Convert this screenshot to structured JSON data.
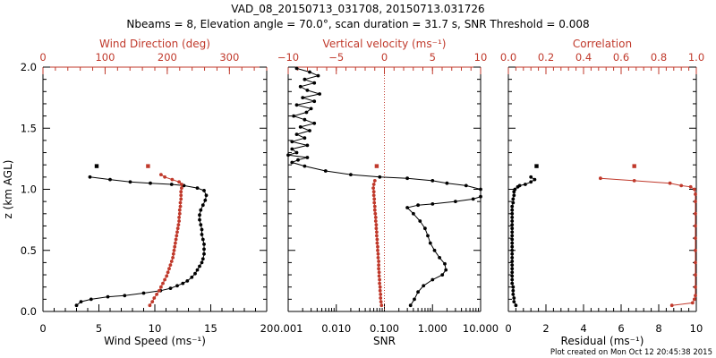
{
  "title_line1": "VAD_08_20150713_031708, 20150713.031726",
  "title_line2": "Nbeams = 8, Elevation angle = 70.0°, scan duration = 31.7 s, SNR Threshold = 0.008",
  "footer": "Plot created on Mon Oct 12 20:45:38 2015",
  "colors": {
    "black": "#000000",
    "red": "#c0392b"
  },
  "chart_data": [
    {
      "type": "line",
      "panel": "wind",
      "ylabel": "z (km AGL)",
      "ylim": [
        0,
        2.0
      ],
      "y_ticks": [
        "0.0",
        "0.5",
        "1.0",
        "1.5",
        "2.0"
      ],
      "bottom_axis": {
        "label": "Wind Speed (ms⁻¹)",
        "range": [
          0,
          20
        ],
        "ticks": [
          "0",
          "5",
          "10",
          "15",
          "20"
        ]
      },
      "top_axis": {
        "label": "Wind Direction (deg)",
        "range": [
          0,
          360
        ],
        "ticks": [
          "0",
          "100",
          "200",
          "300"
        ]
      },
      "series": [
        {
          "role": "wind_speed",
          "axis": "bottom",
          "color": "#000000",
          "points": [
            [
              3.0,
              0.05
            ],
            [
              3.4,
              0.08
            ],
            [
              4.3,
              0.1
            ],
            [
              5.8,
              0.12
            ],
            [
              7.3,
              0.13
            ],
            [
              9.0,
              0.15
            ],
            [
              10.5,
              0.17
            ],
            [
              11.4,
              0.19
            ],
            [
              12.0,
              0.21
            ],
            [
              12.5,
              0.23
            ],
            [
              12.9,
              0.25
            ],
            [
              13.3,
              0.28
            ],
            [
              13.6,
              0.31
            ],
            [
              13.8,
              0.34
            ],
            [
              14.0,
              0.37
            ],
            [
              14.2,
              0.4
            ],
            [
              14.3,
              0.43
            ],
            [
              14.4,
              0.47
            ],
            [
              14.4,
              0.51
            ],
            [
              14.4,
              0.55
            ],
            [
              14.3,
              0.59
            ],
            [
              14.2,
              0.63
            ],
            [
              14.2,
              0.67
            ],
            [
              14.1,
              0.71
            ],
            [
              14.0,
              0.75
            ],
            [
              14.0,
              0.79
            ],
            [
              14.1,
              0.83
            ],
            [
              14.3,
              0.87
            ],
            [
              14.5,
              0.91
            ],
            [
              14.6,
              0.95
            ],
            [
              14.4,
              0.99
            ],
            [
              13.8,
              1.01
            ],
            [
              12.6,
              1.03
            ],
            [
              11.5,
              1.04
            ],
            [
              9.6,
              1.05
            ],
            [
              7.8,
              1.06
            ],
            [
              6.0,
              1.08
            ],
            [
              4.2,
              1.1
            ]
          ],
          "isolated": [
            [
              4.8,
              1.19
            ]
          ]
        },
        {
          "role": "wind_direction",
          "axis": "top",
          "color": "#c0392b",
          "points": [
            [
              172,
              0.05
            ],
            [
              176,
              0.08
            ],
            [
              179,
              0.11
            ],
            [
              183,
              0.14
            ],
            [
              187,
              0.17
            ],
            [
              190,
              0.2
            ],
            [
              193,
              0.23
            ],
            [
              196,
              0.26
            ],
            [
              199,
              0.29
            ],
            [
              201,
              0.32
            ],
            [
              203,
              0.35
            ],
            [
              205,
              0.38
            ],
            [
              207,
              0.41
            ],
            [
              209,
              0.44
            ],
            [
              210,
              0.47
            ],
            [
              211,
              0.5
            ],
            [
              212,
              0.53
            ],
            [
              213,
              0.56
            ],
            [
              214,
              0.59
            ],
            [
              215,
              0.62
            ],
            [
              216,
              0.65
            ],
            [
              217,
              0.68
            ],
            [
              218,
              0.71
            ],
            [
              219,
              0.74
            ],
            [
              219,
              0.77
            ],
            [
              220,
              0.8
            ],
            [
              220,
              0.83
            ],
            [
              221,
              0.86
            ],
            [
              221,
              0.89
            ],
            [
              222,
              0.92
            ],
            [
              222,
              0.95
            ],
            [
              222,
              0.98
            ],
            [
              223,
              1.01
            ],
            [
              223,
              1.04
            ],
            [
              219,
              1.06
            ],
            [
              208,
              1.08
            ],
            [
              196,
              1.1
            ],
            [
              190,
              1.12
            ]
          ],
          "isolated": [
            [
              169,
              1.19
            ]
          ]
        }
      ]
    },
    {
      "type": "line",
      "panel": "snr",
      "ylim": [
        0,
        2.0
      ],
      "bottom_axis": {
        "label": "SNR",
        "scale": "log",
        "range": [
          0.001,
          10
        ],
        "ticks": [
          "0.001",
          "0.010",
          "0.100",
          "1.000",
          "10.000"
        ]
      },
      "top_axis": {
        "label": "Vertical velocity (ms⁻¹)",
        "range": [
          -10,
          10
        ],
        "ticks": [
          "−10",
          "−5",
          "0",
          "5",
          "10"
        ]
      },
      "series": [
        {
          "role": "snr",
          "axis": "bottom",
          "color": "#000000",
          "points": [
            [
              0.35,
              0.05
            ],
            [
              0.42,
              0.1
            ],
            [
              0.5,
              0.16
            ],
            [
              0.65,
              0.21
            ],
            [
              1.0,
              0.26
            ],
            [
              1.6,
              0.3
            ],
            [
              1.9,
              0.34
            ],
            [
              1.8,
              0.39
            ],
            [
              1.4,
              0.44
            ],
            [
              1.1,
              0.5
            ],
            [
              0.9,
              0.56
            ],
            [
              0.8,
              0.62
            ],
            [
              0.7,
              0.68
            ],
            [
              0.55,
              0.74
            ],
            [
              0.4,
              0.8
            ],
            [
              0.3,
              0.85
            ],
            [
              0.5,
              0.87
            ],
            [
              1.0,
              0.88
            ],
            [
              3.0,
              0.9
            ],
            [
              7.0,
              0.92
            ],
            [
              10,
              0.94
            ],
            [
              10,
              1.0
            ],
            [
              5.0,
              1.03
            ],
            [
              2.0,
              1.05
            ],
            [
              1.0,
              1.07
            ],
            [
              0.3,
              1.09
            ],
            [
              0.08,
              1.1
            ],
            [
              0.02,
              1.12
            ],
            [
              0.006,
              1.15
            ],
            [
              0.0022,
              1.19
            ],
            [
              0.0012,
              1.22
            ],
            [
              0.0016,
              1.24
            ],
            [
              0.0025,
              1.26
            ],
            [
              0.001,
              1.28
            ],
            [
              0.0015,
              1.3
            ],
            [
              0.0012,
              1.33
            ],
            [
              0.0025,
              1.36
            ],
            [
              0.0012,
              1.39
            ],
            [
              0.0022,
              1.42
            ],
            [
              0.0015,
              1.45
            ],
            [
              0.0028,
              1.48
            ],
            [
              0.0018,
              1.51
            ],
            [
              0.0035,
              1.54
            ],
            [
              0.0022,
              1.57
            ],
            [
              0.0013,
              1.6
            ],
            [
              0.0024,
              1.63
            ],
            [
              0.003,
              1.66
            ],
            [
              0.0015,
              1.69
            ],
            [
              0.0035,
              1.72
            ],
            [
              0.002,
              1.75
            ],
            [
              0.0045,
              1.78
            ],
            [
              0.0025,
              1.81
            ],
            [
              0.0018,
              1.84
            ],
            [
              0.0035,
              1.87
            ],
            [
              0.0022,
              1.9
            ],
            [
              0.0042,
              1.93
            ],
            [
              0.0028,
              1.96
            ],
            [
              0.0015,
              1.99
            ]
          ]
        },
        {
          "role": "vertical_velocity",
          "axis": "top",
          "color": "#c0392b",
          "points": [
            [
              -0.3,
              0.05
            ],
            [
              -0.35,
              0.08
            ],
            [
              -0.4,
              0.11
            ],
            [
              -0.4,
              0.14
            ],
            [
              -0.45,
              0.17
            ],
            [
              -0.45,
              0.2
            ],
            [
              -0.5,
              0.23
            ],
            [
              -0.5,
              0.26
            ],
            [
              -0.55,
              0.29
            ],
            [
              -0.55,
              0.32
            ],
            [
              -0.6,
              0.35
            ],
            [
              -0.6,
              0.38
            ],
            [
              -0.6,
              0.41
            ],
            [
              -0.65,
              0.44
            ],
            [
              -0.65,
              0.47
            ],
            [
              -0.7,
              0.5
            ],
            [
              -0.7,
              0.53
            ],
            [
              -0.75,
              0.56
            ],
            [
              -0.75,
              0.59
            ],
            [
              -0.8,
              0.62
            ],
            [
              -0.8,
              0.65
            ],
            [
              -0.85,
              0.68
            ],
            [
              -0.85,
              0.71
            ],
            [
              -0.9,
              0.74
            ],
            [
              -0.9,
              0.77
            ],
            [
              -0.95,
              0.8
            ],
            [
              -1.0,
              0.83
            ],
            [
              -1.0,
              0.86
            ],
            [
              -1.05,
              0.89
            ],
            [
              -1.05,
              0.92
            ],
            [
              -1.1,
              0.95
            ],
            [
              -1.1,
              0.98
            ],
            [
              -1.15,
              1.01
            ],
            [
              -1.1,
              1.04
            ],
            [
              -1.0,
              1.07
            ]
          ],
          "isolated": [
            [
              -0.8,
              1.19
            ]
          ]
        }
      ]
    },
    {
      "type": "line",
      "panel": "residual",
      "ylim": [
        0,
        2.0
      ],
      "bottom_axis": {
        "label": "Residual (ms⁻¹)",
        "range": [
          0,
          10
        ],
        "ticks": [
          "0",
          "2",
          "4",
          "6",
          "8",
          "10"
        ]
      },
      "top_axis": {
        "label": "Correlation",
        "range": [
          0,
          1.0
        ],
        "ticks": [
          "0.0",
          "0.2",
          "0.4",
          "0.6",
          "0.8",
          "1.0"
        ]
      },
      "series": [
        {
          "role": "residual",
          "axis": "bottom",
          "color": "#000000",
          "points": [
            [
              0.4,
              0.05
            ],
            [
              0.3,
              0.08
            ],
            [
              0.3,
              0.11
            ],
            [
              0.25,
              0.14
            ],
            [
              0.25,
              0.17
            ],
            [
              0.25,
              0.2
            ],
            [
              0.2,
              0.23
            ],
            [
              0.2,
              0.26
            ],
            [
              0.2,
              0.29
            ],
            [
              0.2,
              0.32
            ],
            [
              0.2,
              0.35
            ],
            [
              0.2,
              0.38
            ],
            [
              0.2,
              0.41
            ],
            [
              0.2,
              0.44
            ],
            [
              0.2,
              0.47
            ],
            [
              0.2,
              0.5
            ],
            [
              0.2,
              0.53
            ],
            [
              0.2,
              0.56
            ],
            [
              0.2,
              0.59
            ],
            [
              0.2,
              0.62
            ],
            [
              0.2,
              0.65
            ],
            [
              0.2,
              0.68
            ],
            [
              0.2,
              0.71
            ],
            [
              0.2,
              0.74
            ],
            [
              0.2,
              0.77
            ],
            [
              0.2,
              0.8
            ],
            [
              0.2,
              0.83
            ],
            [
              0.2,
              0.86
            ],
            [
              0.25,
              0.89
            ],
            [
              0.25,
              0.92
            ],
            [
              0.3,
              0.95
            ],
            [
              0.3,
              0.98
            ],
            [
              0.35,
              1.0
            ],
            [
              0.5,
              1.02
            ],
            [
              0.6,
              1.03
            ],
            [
              0.9,
              1.04
            ],
            [
              1.2,
              1.06
            ],
            [
              1.4,
              1.08
            ],
            [
              1.2,
              1.1
            ]
          ],
          "isolated": [
            [
              1.5,
              1.19
            ]
          ]
        },
        {
          "role": "correlation",
          "axis": "top",
          "color": "#c0392b",
          "points": [
            [
              0.87,
              0.05
            ],
            [
              0.98,
              0.07
            ],
            [
              0.99,
              0.1
            ],
            [
              0.995,
              0.13
            ],
            [
              0.995,
              0.2
            ],
            [
              0.995,
              0.3
            ],
            [
              0.995,
              0.4
            ],
            [
              0.995,
              0.5
            ],
            [
              0.995,
              0.6
            ],
            [
              0.995,
              0.7
            ],
            [
              0.995,
              0.8
            ],
            [
              0.995,
              0.9
            ],
            [
              0.995,
              0.96
            ],
            [
              0.99,
              1.0
            ],
            [
              0.97,
              1.02
            ],
            [
              0.92,
              1.03
            ],
            [
              0.86,
              1.05
            ],
            [
              0.67,
              1.07
            ],
            [
              0.49,
              1.09
            ]
          ],
          "isolated": [
            [
              0.67,
              1.19
            ]
          ]
        }
      ]
    }
  ]
}
